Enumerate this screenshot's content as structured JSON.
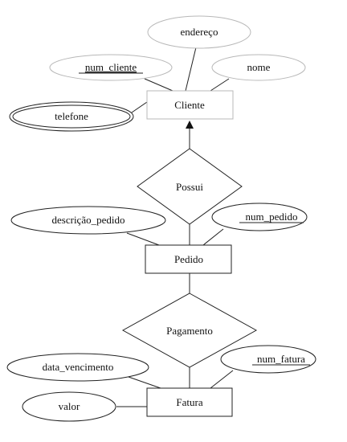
{
  "diagram": {
    "entities": {
      "cliente": "Cliente",
      "pedido": "Pedido",
      "fatura": "Fatura"
    },
    "relationships": {
      "possui": "Possui",
      "pagamento": "Pagamento"
    },
    "attributes": {
      "endereco": "endereço",
      "num_cliente": "num_cliente",
      "nome": "nome",
      "telefone": "telefone",
      "descricao_pedido": "descrição_pedido",
      "num_pedido": "num_pedido",
      "data_vencimento": "data_vencimento",
      "num_fatura": "num_fatura",
      "valor": "valor"
    }
  }
}
